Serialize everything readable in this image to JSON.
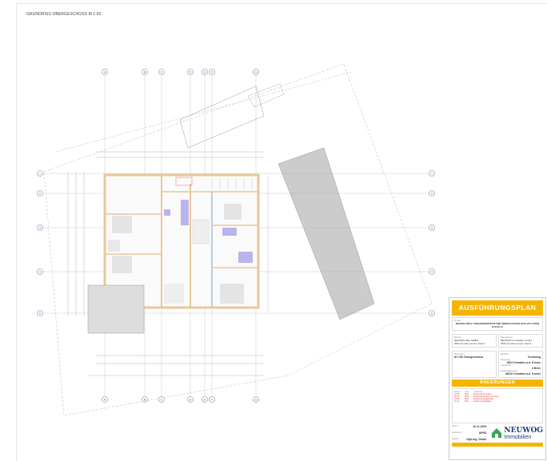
{
  "drawing_title": "GRUNDRISS OBERGESCHOSS M 1:50",
  "grid": {
    "columns": [
      "A",
      "B",
      "C",
      "D",
      "E",
      "F",
      "G"
    ],
    "rows": [
      "1",
      "2",
      "3",
      "4",
      "5"
    ]
  },
  "title_block": {
    "plan_type": "AUSFÜHRUNGSPLAN",
    "project_label": "Projekt",
    "project": "NEUBAU MFH 7 WOHNEINHEITEN UND ÜBERDACHTEN STELLPLÄTZEN (HAUS A)",
    "client_label": "Bauherr",
    "client_name": "NEUWOG Bau GMBH",
    "client_address": "4521 Kematen an der Krems",
    "planner_label": "Planverfasser",
    "planner_name": "NEUWOG Immobilien GmbH",
    "planner_address": "4521 Kematen an der Krems",
    "content_label": "Planinhalt",
    "content": "M 1:50 Obergeschoss",
    "street_label": "Bauplatz",
    "street": "Kerniweg",
    "town_label": "Gemeinde",
    "town": "4521 Kematen a.d. Krems",
    "parcel_label": "Grundstück",
    "parcel": "3 B211",
    "kg_label": "Katastralgemeinde",
    "kg": "45210 Kematen a.d. Krems",
    "changes_title": "ÄNDERUNGEN",
    "changes_headers": [
      "Datum",
      "Gez.",
      "Änderung"
    ],
    "changes": [
      [
        "27.06.",
        "APS",
        "Änderung Grundriss"
      ],
      [
        "05.07.",
        "APS",
        "Änderung Fenster und Türen"
      ],
      [
        "12.09.",
        "APS",
        "Änderung Stiegenhaus"
      ],
      [
        "10.11.",
        "APS",
        "Änderung Stellplätze"
      ]
    ],
    "date_label": "Datum",
    "date": "10.11.2023",
    "drawn_label": "Gezeichnet",
    "drawn": "APRS",
    "checked_label": "Geprüft",
    "checked": "Dipl.Ing. Gmbh",
    "logo": "NEUWOG Immobilien"
  },
  "colors": {
    "accent": "#f5b400",
    "wall": "#e8c89a",
    "highlight": "#b9b4ec",
    "logo": "#1f3f7a",
    "logo_green": "#3aa655"
  }
}
